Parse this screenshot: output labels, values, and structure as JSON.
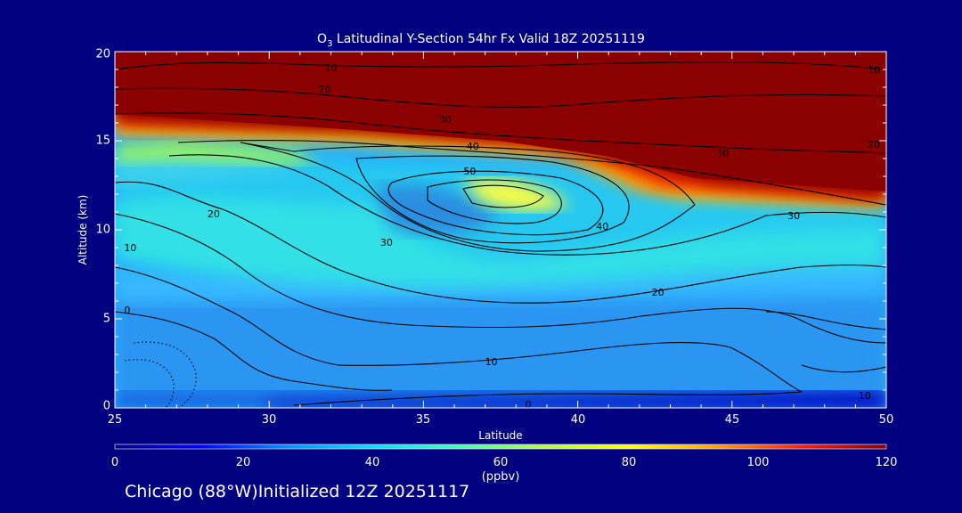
{
  "chart_data": {
    "type": "heatmap",
    "title": "O3 Latitudinal Y-Section 54hr  Fx Valid 18Z 20251119",
    "title_subscript": "3",
    "xlabel": "Latitude",
    "ylabel": "Altitude (km)",
    "xlim": [
      25,
      50
    ],
    "ylim": [
      0,
      20
    ],
    "x_ticks": [
      "25",
      "30",
      "35",
      "40",
      "45",
      "50"
    ],
    "y_ticks": [
      "0",
      "5",
      "10",
      "15",
      "20"
    ],
    "colorbar": {
      "range": [
        0,
        120
      ],
      "ticks": [
        "0",
        "20",
        "40",
        "60",
        "80",
        "100",
        "120"
      ],
      "units": "(ppbv)",
      "colors": [
        "#00007a",
        "#0000ff",
        "#0090ff",
        "#00e0ff",
        "#40ffb0",
        "#b0ff40",
        "#ffff00",
        "#ffa000",
        "#ff2000",
        "#8b0000"
      ]
    },
    "contour_labels": [
      {
        "text": "10",
        "lat": 32.0,
        "alt": 19.1
      },
      {
        "text": "10",
        "lat": 49.6,
        "alt": 19.0
      },
      {
        "text": "20",
        "lat": 31.8,
        "alt": 17.9
      },
      {
        "text": "30",
        "lat": 35.7,
        "alt": 16.2
      },
      {
        "text": "40",
        "lat": 36.6,
        "alt": 14.7
      },
      {
        "text": "50",
        "lat": 36.5,
        "alt": 13.3
      },
      {
        "text": "30",
        "lat": 44.7,
        "alt": 14.3
      },
      {
        "text": "20",
        "lat": 49.6,
        "alt": 14.8
      },
      {
        "text": "40",
        "lat": 40.8,
        "alt": 10.2
      },
      {
        "text": "30",
        "lat": 47.0,
        "alt": 10.8
      },
      {
        "text": "20",
        "lat": 28.2,
        "alt": 10.9
      },
      {
        "text": "30",
        "lat": 33.8,
        "alt": 9.3
      },
      {
        "text": "10",
        "lat": 25.5,
        "alt": 9.0
      },
      {
        "text": "20",
        "lat": 42.6,
        "alt": 6.5
      },
      {
        "text": "0",
        "lat": 25.4,
        "alt": 5.5
      },
      {
        "text": "10",
        "lat": 37.2,
        "alt": 2.6
      },
      {
        "text": "0",
        "lat": 38.4,
        "alt": 0.2
      },
      {
        "text": "10",
        "lat": 49.3,
        "alt": 0.7
      }
    ]
  },
  "footer": "Chicago (88°W)Initialized 12Z 20251117"
}
